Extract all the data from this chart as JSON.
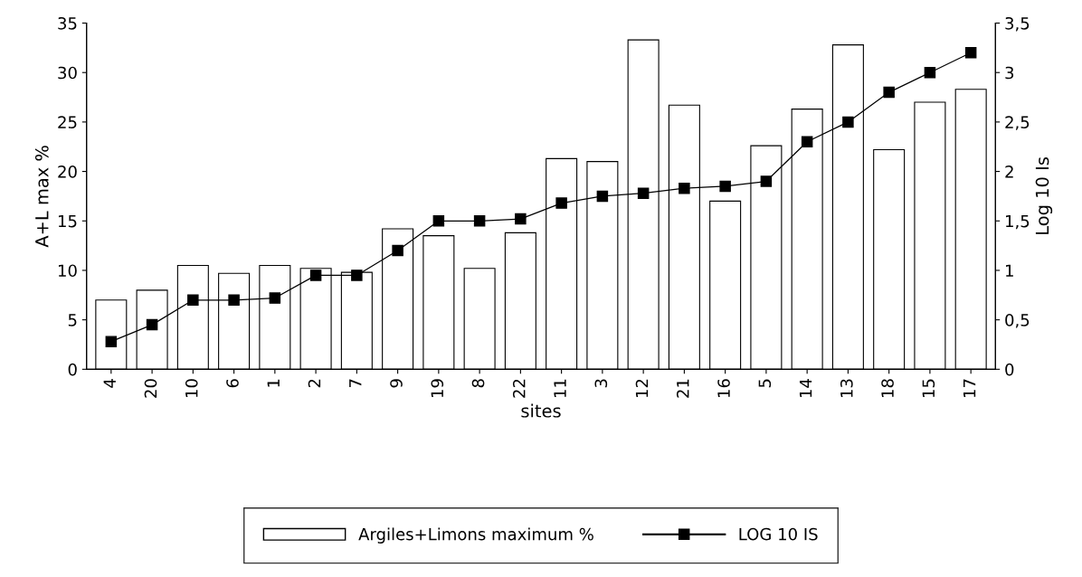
{
  "chart_data": {
    "type": "bar",
    "xlabel": "sites",
    "ylabel": "A+L max %",
    "y2label": "Log 10 Is",
    "categories": [
      "4",
      "20",
      "10",
      "6",
      "1",
      "2",
      "7",
      "9",
      "19",
      "8",
      "22",
      "11",
      "3",
      "12",
      "21",
      "16",
      "5",
      "14",
      "13",
      "18",
      "15",
      "17"
    ],
    "series": [
      {
        "name": "Argiles+Limons maximum %",
        "color": "#ffffff",
        "values": [
          7,
          8,
          10.5,
          9.7,
          10.5,
          10.2,
          9.8,
          14.2,
          13.5,
          10.2,
          13.8,
          21.3,
          21,
          33.3,
          26.7,
          17,
          22.6,
          26.3,
          32.8,
          22.2,
          27,
          28.3
        ]
      },
      {
        "name": "LOG 10 IS",
        "type": "line",
        "axis": "y2",
        "color": "#000000",
        "marker": "square",
        "line_style": "solid",
        "values": [
          0.28,
          0.45,
          0.7,
          0.7,
          0.72,
          0.95,
          0.95,
          1.2,
          1.5,
          1.5,
          1.52,
          1.68,
          1.75,
          1.78,
          1.83,
          1.85,
          1.9,
          2.3,
          2.5,
          2.8,
          3.0,
          3.2
        ]
      }
    ],
    "ylim": [
      0,
      35
    ],
    "yticks": [
      0,
      5,
      10,
      15,
      20,
      25,
      30,
      35
    ],
    "y2lim": [
      0,
      3.5
    ],
    "y2ticks": [
      0,
      {
        "value": 0.5,
        "label": "0,5"
      },
      1,
      {
        "value": 1.5,
        "label": "1,5"
      },
      2,
      {
        "value": 2.5,
        "label": "2,5"
      },
      3,
      {
        "value": 3.5,
        "label": "3,5"
      }
    ],
    "grid": false,
    "legend": "bottom"
  }
}
